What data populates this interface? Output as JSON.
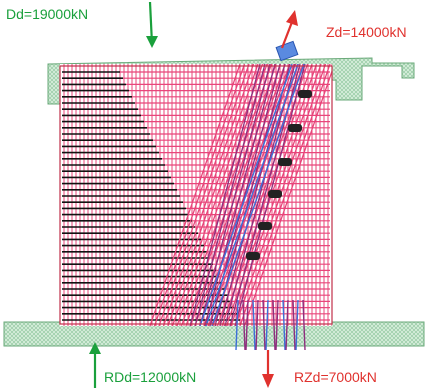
{
  "labels": {
    "top_left": "Dd=19000kN",
    "top_right": "Zd=14000kN",
    "bottom_left": "RDd=12000kN",
    "bottom_right": "RZd=7000kN"
  },
  "colors": {
    "compression": "#1aa03c",
    "tension": "#e0322e",
    "stirrups": "#e8457a",
    "longitudinal": "#111111",
    "inclined_bars": "#8e2f7e",
    "duct": "#3d6fd8",
    "anchor_plate": "#bfe3c8"
  },
  "arrows": {
    "top_left": "compression-arrow",
    "top_right": "tension-arrow",
    "bottom_left": "reaction-arrow",
    "bottom_right": "tension-reaction-arrow"
  }
}
